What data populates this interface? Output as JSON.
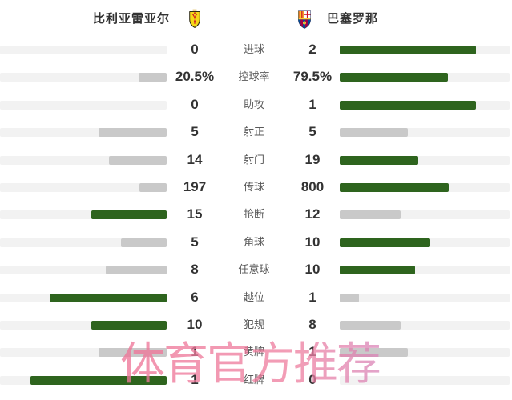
{
  "header": {
    "home_team": "比利亚雷亚尔",
    "away_team": "巴塞罗那",
    "home_crest": "villarreal-crest",
    "away_crest": "barcelona-crest"
  },
  "watermark": "体育官方推荐",
  "colors": {
    "win_bar": "#2e641e",
    "lose_bar": "#c9c9c9",
    "bar_track": "#f2f2f2",
    "value_text": "#333333",
    "label_text": "#595959",
    "team_text": "#333333",
    "watermark_pink": "#ee7d9e",
    "watermark_violet": "#b48ce0"
  },
  "stats": [
    {
      "label": "进球",
      "home": "0",
      "away": "2",
      "home_num": 0,
      "away_num": 2
    },
    {
      "label": "控球率",
      "home": "20.5%",
      "away": "79.5%",
      "home_num": 20.5,
      "away_num": 79.5
    },
    {
      "label": "助攻",
      "home": "0",
      "away": "1",
      "home_num": 0,
      "away_num": 1
    },
    {
      "label": "射正",
      "home": "5",
      "away": "5",
      "home_num": 5,
      "away_num": 5
    },
    {
      "label": "射门",
      "home": "14",
      "away": "19",
      "home_num": 14,
      "away_num": 19
    },
    {
      "label": "传球",
      "home": "197",
      "away": "800",
      "home_num": 197,
      "away_num": 800
    },
    {
      "label": "抢断",
      "home": "15",
      "away": "12",
      "home_num": 15,
      "away_num": 12
    },
    {
      "label": "角球",
      "home": "5",
      "away": "10",
      "home_num": 5,
      "away_num": 10
    },
    {
      "label": "任意球",
      "home": "8",
      "away": "10",
      "home_num": 8,
      "away_num": 10
    },
    {
      "label": "越位",
      "home": "6",
      "away": "1",
      "home_num": 6,
      "away_num": 1
    },
    {
      "label": "犯规",
      "home": "10",
      "away": "8",
      "home_num": 10,
      "away_num": 8
    },
    {
      "label": "黄牌",
      "home": "1",
      "away": "1",
      "home_num": 1,
      "away_num": 1
    },
    {
      "label": "红牌",
      "home": "1",
      "away": "0",
      "home_num": 1,
      "away_num": 0
    }
  ],
  "chart_data": {
    "type": "bar",
    "orientation": "horizontal-mirrored",
    "title": "",
    "categories": [
      "进球",
      "控球率",
      "助攻",
      "射正",
      "射门",
      "传球",
      "抢断",
      "角球",
      "任意球",
      "越位",
      "犯规",
      "黄牌",
      "红牌"
    ],
    "series": [
      {
        "name": "比利亚雷亚尔",
        "values": [
          0,
          20.5,
          0,
          5,
          14,
          197,
          15,
          5,
          8,
          6,
          10,
          1,
          1
        ]
      },
      {
        "name": "巴塞罗那",
        "values": [
          2,
          79.5,
          1,
          5,
          19,
          800,
          12,
          10,
          10,
          1,
          8,
          1,
          0
        ]
      }
    ],
    "bar_rule": "bar length = value / (home+away) of its row; winning side dark green, losing or tied side gray",
    "legend_position": "top",
    "grid": false
  }
}
